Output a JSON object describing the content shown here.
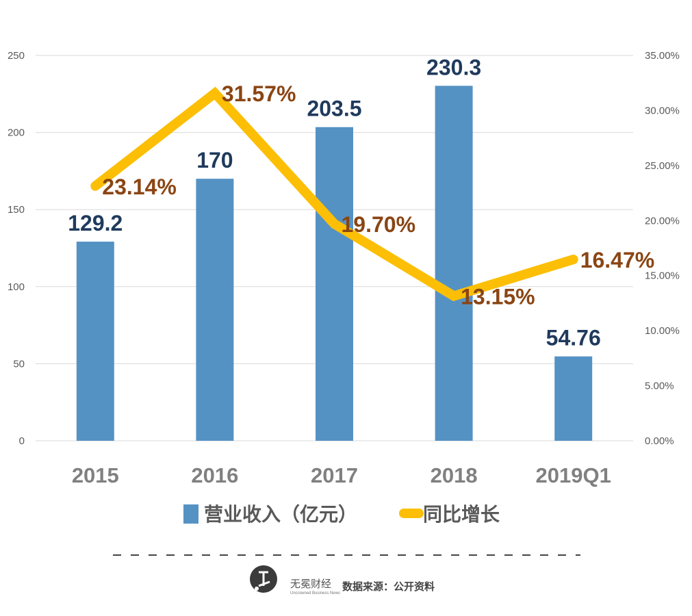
{
  "chart_data": {
    "type": "bar",
    "categories": [
      "2015",
      "2016",
      "2017",
      "2018",
      "2019Q1"
    ],
    "series": [
      {
        "name": "营业收入（亿元）",
        "type": "bar",
        "axis": "left",
        "values": [
          129.2,
          170,
          203.5,
          230.3,
          54.76
        ],
        "data_labels": [
          "129.2",
          "170",
          "203.5",
          "230.3",
          "54.76"
        ],
        "color": "#5592c4"
      },
      {
        "name": "同比增长",
        "type": "line",
        "axis": "right",
        "values": [
          23.14,
          31.57,
          19.7,
          13.15,
          16.47
        ],
        "data_labels": [
          "23.14%",
          "31.57%",
          "19.70%",
          "13.15%",
          "16.47%"
        ],
        "color": "#fcbf06"
      }
    ],
    "y_left": {
      "ylim": [
        0,
        250
      ],
      "ticks": [
        "0",
        "50",
        "100",
        "150",
        "200",
        "250"
      ]
    },
    "y_right": {
      "ylim": [
        0,
        35
      ],
      "ticks": [
        "0.00%",
        "5.00%",
        "10.00%",
        "15.00%",
        "20.00%",
        "25.00%",
        "30.00%",
        "35.00%"
      ]
    },
    "grid": true,
    "legend_position": "bottom"
  },
  "footer": {
    "brand": "无冕财经",
    "brand_en": "Uncrowned Business News",
    "source": "数据来源：公开资料"
  },
  "colors": {
    "bar": "#5592c4",
    "line": "#fcbf06",
    "bar_label": "#1f3a5c",
    "line_label": "#8a4513"
  }
}
